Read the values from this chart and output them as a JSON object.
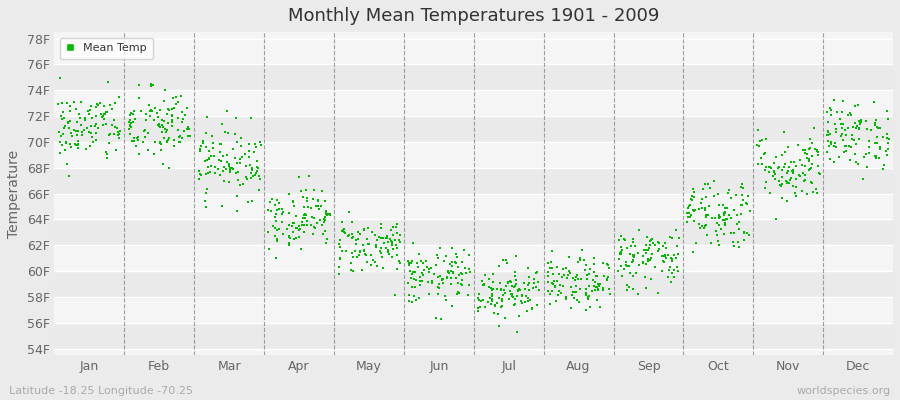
{
  "title": "Monthly Mean Temperatures 1901 - 2009",
  "ylabel": "Temperature",
  "xlabel_labels": [
    "Jan",
    "Feb",
    "Mar",
    "Apr",
    "May",
    "Jun",
    "Jul",
    "Aug",
    "Sep",
    "Oct",
    "Nov",
    "Dec"
  ],
  "ytick_labels": [
    "54F",
    "56F",
    "58F",
    "60F",
    "62F",
    "64F",
    "66F",
    "68F",
    "70F",
    "72F",
    "74F",
    "76F",
    "78F"
  ],
  "ytick_values": [
    54,
    56,
    58,
    60,
    62,
    64,
    66,
    68,
    70,
    72,
    74,
    76,
    78
  ],
  "ylim": [
    53.5,
    78.5
  ],
  "dot_color": "#00BB00",
  "bg_color": "#EBEBEB",
  "plot_bg_color": "#F5F5F5",
  "band_color1": "#F5F5F5",
  "band_color2": "#EAEAEA",
  "legend_label": "Mean Temp",
  "watermark": "worldspecies.org",
  "geo_label": "Latitude -18.25 Longitude -70.25",
  "n_years": 109,
  "monthly_means": [
    71.1,
    71.2,
    68.5,
    64.2,
    62.0,
    59.5,
    58.5,
    59.0,
    61.0,
    64.5,
    68.0,
    70.5
  ],
  "monthly_stds": [
    1.4,
    1.5,
    1.4,
    1.2,
    1.1,
    1.1,
    1.1,
    1.0,
    1.2,
    1.4,
    1.4,
    1.3
  ],
  "seed": 42
}
